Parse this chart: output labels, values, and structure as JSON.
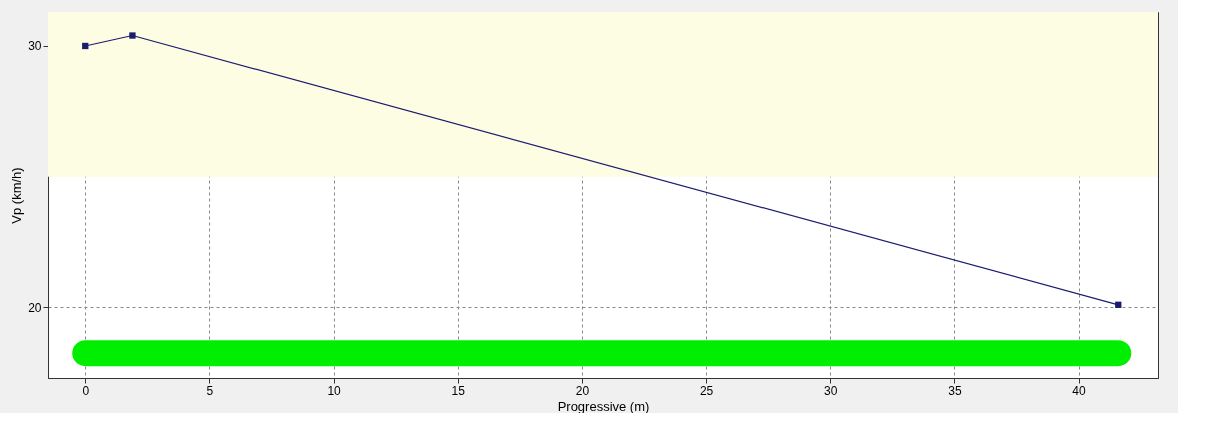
{
  "chart_data": {
    "type": "line",
    "xlabel": "Progressive (m)",
    "ylabel": "Vp (km/h)",
    "xlim": [
      -1.5,
      43.2
    ],
    "ylim": [
      17.3,
      31.3
    ],
    "xticks": [
      0,
      5,
      10,
      15,
      20,
      25,
      30,
      35,
      40
    ],
    "yticks": [
      20,
      30
    ],
    "grid": true,
    "bands": [
      {
        "axis": "y",
        "from": 25,
        "to": 31.3,
        "color": "#fdfde4"
      }
    ],
    "series": [
      {
        "color": "#00ee00",
        "x": [
          0,
          41.6
        ],
        "values": [
          18.25,
          18.25
        ],
        "marker": "none",
        "line_style": "solid"
      },
      {
        "color": "#1c1c6e",
        "x": [
          0,
          1.9,
          41.6
        ],
        "values": [
          30.0,
          30.4,
          20.1
        ],
        "marker": "square",
        "line_style": "solid"
      }
    ]
  }
}
